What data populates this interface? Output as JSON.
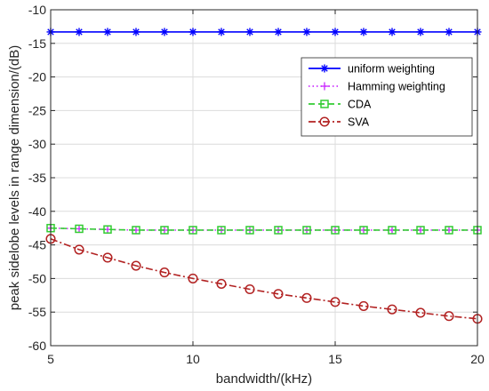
{
  "chart_data": {
    "type": "line",
    "title": "",
    "xlabel": "bandwidth/(kHz)",
    "ylabel": "peak sidelobe levels in range dimension/(dB)",
    "xlim": [
      5,
      20
    ],
    "ylim": [
      -60,
      -10
    ],
    "xticks": [
      5,
      10,
      15,
      20
    ],
    "yticks": [
      -10,
      -15,
      -20,
      -25,
      -30,
      -35,
      -40,
      -45,
      -50,
      -55,
      -60
    ],
    "grid": true,
    "legend_position": "top-right",
    "x": [
      5,
      6,
      7,
      8,
      9,
      10,
      11,
      12,
      13,
      14,
      15,
      16,
      17,
      18,
      19,
      20
    ],
    "series": [
      {
        "name": "uniform weighting",
        "color": "#0000ff",
        "marker": "asterisk",
        "line_style": "solid",
        "values": [
          -13.3,
          -13.3,
          -13.3,
          -13.3,
          -13.3,
          -13.3,
          -13.3,
          -13.3,
          -13.3,
          -13.3,
          -13.3,
          -13.3,
          -13.3,
          -13.3,
          -13.3,
          -13.3
        ]
      },
      {
        "name": "Hamming weighting",
        "color": "#cc33ff",
        "marker": "plus",
        "line_style": "dotted",
        "values": [
          -42.5,
          -42.6,
          -42.7,
          -42.8,
          -42.8,
          -42.8,
          -42.8,
          -42.8,
          -42.8,
          -42.8,
          -42.8,
          -42.8,
          -42.8,
          -42.8,
          -42.8,
          -42.8
        ]
      },
      {
        "name": "CDA",
        "color": "#33cc33",
        "marker": "square",
        "line_style": "dashed",
        "values": [
          -42.5,
          -42.6,
          -42.7,
          -42.8,
          -42.8,
          -42.8,
          -42.8,
          -42.8,
          -42.8,
          -42.8,
          -42.8,
          -42.8,
          -42.8,
          -42.8,
          -42.8,
          -42.8
        ]
      },
      {
        "name": "SVA",
        "color": "#b22222",
        "marker": "circle",
        "line_style": "dash-dot",
        "values": [
          -44.1,
          -45.7,
          -46.9,
          -48.1,
          -49.1,
          -50.0,
          -50.8,
          -51.6,
          -52.3,
          -52.9,
          -53.5,
          -54.1,
          -54.6,
          -55.1,
          -55.6,
          -56.0
        ]
      }
    ]
  }
}
